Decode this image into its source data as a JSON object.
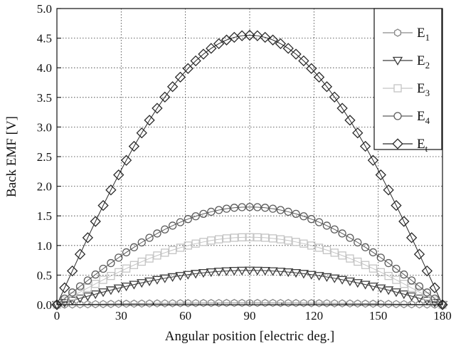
{
  "chart_data": {
    "type": "scatter",
    "xlabel": "Angular position [electric deg.]",
    "ylabel": "Back EMF [V]",
    "xlim": [
      0,
      180
    ],
    "ylim": [
      0,
      5
    ],
    "xticks": [
      0,
      30,
      60,
      90,
      120,
      150,
      180
    ],
    "yticks": [
      0.0,
      0.5,
      1.0,
      1.5,
      2.0,
      2.5,
      3.0,
      3.5,
      4.0,
      4.5,
      5.0
    ],
    "xtick_labels": [
      "0",
      "30",
      "60",
      "90",
      "120",
      "150",
      "180"
    ],
    "ytick_labels": [
      "0.0",
      "0.5",
      "1.0",
      "1.5",
      "2.0",
      "2.5",
      "3.0",
      "3.5",
      "4.0",
      "4.5",
      "5.0"
    ],
    "grid": true,
    "legend_position": "top-right",
    "x_step": 3.6,
    "x_count": 51,
    "series": [
      {
        "name": "E1",
        "base": "E",
        "sub": "1",
        "marker": "hexagon",
        "color": "#8a8a8a",
        "amplitude": 0.03
      },
      {
        "name": "E2",
        "base": "E",
        "sub": "2",
        "marker": "triangle-down",
        "color": "#3c3c3c",
        "amplitude": 0.58
      },
      {
        "name": "E3",
        "base": "E",
        "sub": "3",
        "marker": "square",
        "color": "#c4c4c4",
        "amplitude": 1.14
      },
      {
        "name": "E4",
        "base": "E",
        "sub": "4",
        "marker": "circle",
        "color": "#5c5c5c",
        "amplitude": 1.65
      },
      {
        "name": "Et",
        "base": "E",
        "sub": "t",
        "marker": "diamond",
        "color": "#2a2a2a",
        "amplitude": 4.55
      }
    ]
  }
}
